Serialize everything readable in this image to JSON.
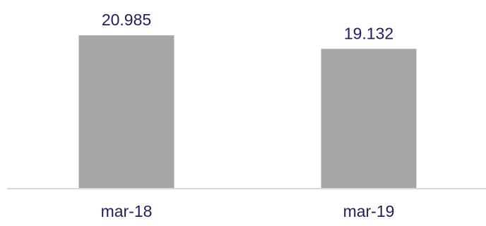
{
  "chart_data": {
    "type": "bar",
    "categories": [
      "mar-18",
      "mar-19"
    ],
    "values": [
      20.985,
      19.132
    ],
    "data_labels": [
      "20.985",
      "19.132"
    ],
    "title": "",
    "xlabel": "",
    "ylabel": "",
    "ylim": [
      0,
      22
    ],
    "grid": false,
    "legend": "none",
    "colors": {
      "bar": "#a6a6a6",
      "text": "#1f1f5c",
      "axis": "#d9d9d9"
    }
  }
}
